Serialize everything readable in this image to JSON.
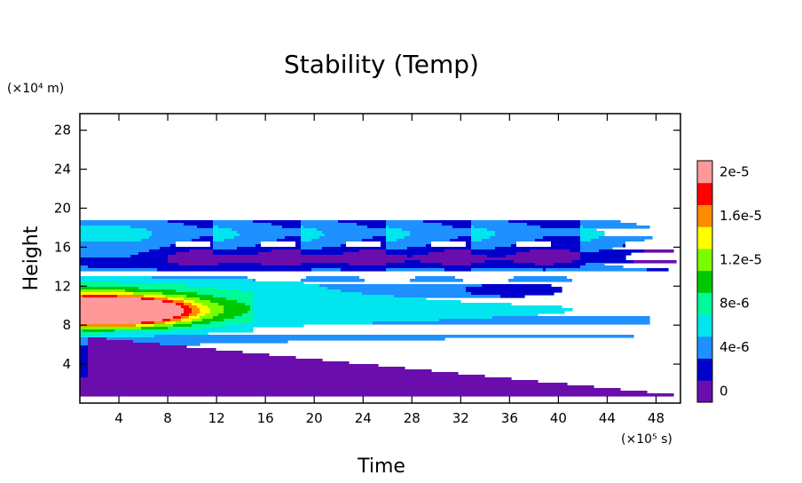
{
  "chart_data": {
    "type": "heatmap",
    "title": "Stability (Temp)",
    "xlabel": "Time",
    "ylabel": "Height",
    "x_unit": "(×10⁵ s)",
    "y_unit": "(×10⁴ m)",
    "xlim": [
      0.8,
      50
    ],
    "ylim": [
      0,
      29.7
    ],
    "x_ticks": [
      4,
      8,
      12,
      16,
      20,
      24,
      28,
      32,
      36,
      40,
      44,
      48
    ],
    "y_ticks": [
      4,
      8,
      12,
      16,
      20,
      24,
      28
    ],
    "colorbar": {
      "levels": [
        0,
        2e-06,
        4e-06,
        6e-06,
        8e-06,
        1e-05,
        1.2e-05,
        1.4e-05,
        1.6e-05,
        1.8e-05,
        2e-05
      ],
      "labels": [
        "0",
        "4e-6",
        "8e-6",
        "1.2e-5",
        "1.6e-5",
        "2e-5"
      ],
      "colors": [
        "#6a0dad",
        "#0000cd",
        "#1e90ff",
        "#00e5ee",
        "#00fa9a",
        "#00c800",
        "#7cfc00",
        "#ffff00",
        "#ff8c00",
        "#ff0000",
        "#ff9999"
      ],
      "above_max_color": "#ffffff"
    },
    "domain_top": 19.2,
    "features": [
      {
        "name": "lower-layer",
        "level": 0,
        "x_range": [
          0.8,
          50
        ],
        "y_bottom": 0.3,
        "y_top_start": 6.8,
        "y_top_end": 0.8
      },
      {
        "name": "strong-band",
        "level": 16,
        "x_range": [
          0.8,
          9
        ],
        "y_range": [
          8.8,
          10.2
        ]
      },
      {
        "name": "upper-white-patches",
        "level": 22,
        "centers_x": [
          10,
          17,
          24,
          31,
          38,
          47
        ],
        "y": 16.3
      },
      {
        "name": "mid-white-patches",
        "level": 22,
        "centers_x": [
          17,
          26,
          34,
          43
        ],
        "y": 12.8
      }
    ]
  }
}
